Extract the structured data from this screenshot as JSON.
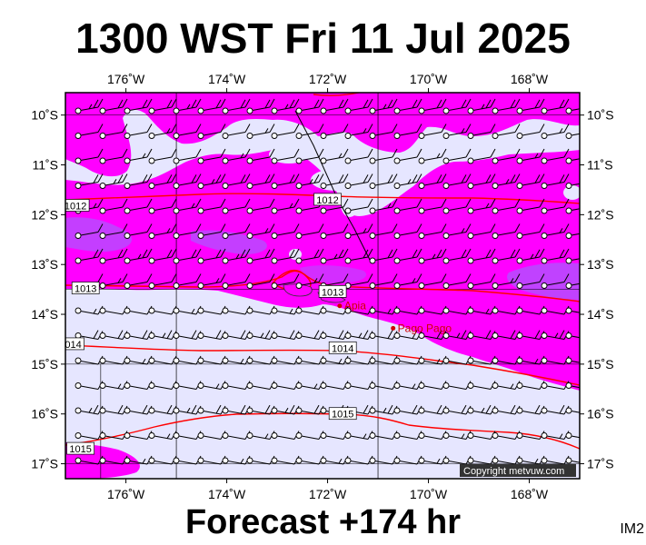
{
  "title": "1300 WST Fri 11 Jul 2025",
  "footer": "Forecast +174 hr",
  "image_tag": "IM2",
  "copyright": "Copyright metvuw.com",
  "places": [
    {
      "name": "Apia",
      "lon": -171.76,
      "lat": -13.83
    },
    {
      "name": "Pago Pago",
      "lon": -170.7,
      "lat": -14.28
    }
  ],
  "map": {
    "lon_range": [
      -177.2,
      -167.0
    ],
    "lat_range": [
      -17.3,
      -9.55
    ],
    "lon_ticks": [
      {
        "value": -176,
        "label": "176˚W"
      },
      {
        "value": -174,
        "label": "174˚W"
      },
      {
        "value": -172,
        "label": "172˚W"
      },
      {
        "value": -170,
        "label": "170˚W"
      },
      {
        "value": -168,
        "label": "168˚W"
      }
    ],
    "lat_ticks": [
      {
        "value": -10,
        "label": "10˚S"
      },
      {
        "value": -11,
        "label": "11˚S"
      },
      {
        "value": -12,
        "label": "12˚S"
      },
      {
        "value": -13,
        "label": "13˚S"
      },
      {
        "value": -14,
        "label": "14˚S"
      },
      {
        "value": -15,
        "label": "15˚S"
      },
      {
        "value": -16,
        "label": "16˚S"
      },
      {
        "value": -17,
        "label": "17˚S"
      }
    ],
    "colors": {
      "background": "#e6e6ff",
      "magenta": "#ff00ff",
      "violet": "#b54dff",
      "isobar": "#ff0000",
      "barb": "#000000"
    },
    "isobars": [
      {
        "label": "1012",
        "label_positions": [
          [
            -177.0,
            -11.82
          ],
          [
            -172.0,
            -11.7
          ]
        ]
      },
      {
        "label": "1013",
        "label_positions": [
          [
            -176.8,
            -13.48
          ],
          [
            -171.9,
            -13.55
          ]
        ]
      },
      {
        "label": "1014",
        "label_positions": [
          [
            -177.1,
            -14.6
          ],
          [
            -171.7,
            -14.68
          ]
        ]
      },
      {
        "label": "1015",
        "label_positions": [
          [
            -176.9,
            -16.7
          ],
          [
            -171.7,
            -16.0
          ]
        ]
      }
    ]
  }
}
